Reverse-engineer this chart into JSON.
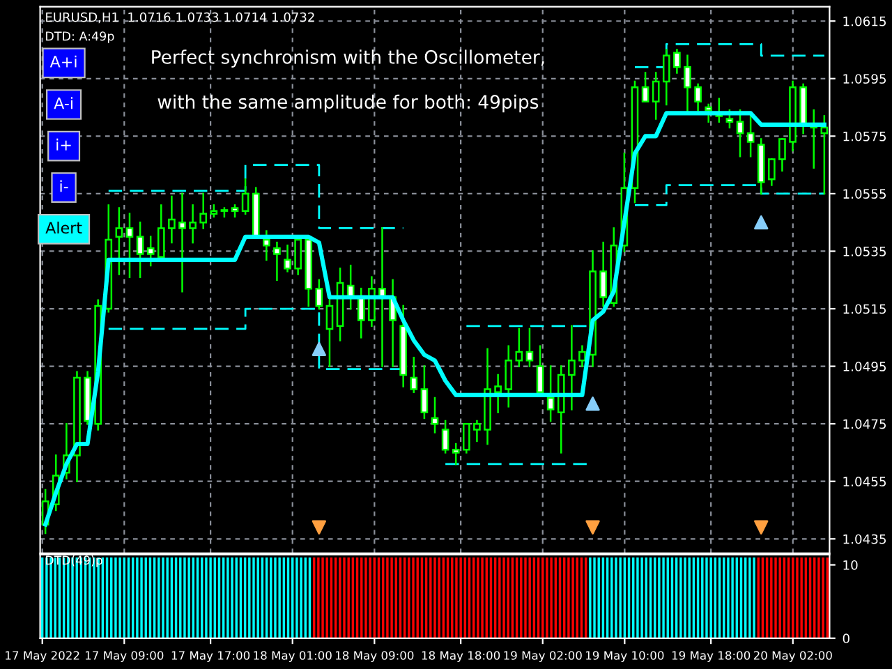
{
  "chart_data": [
    {
      "type": "candlestick",
      "title": "EURUSD,H1  1.0716 1.0733 1.0714 1.0732",
      "subtitle": "DTD: A:49p",
      "annotations": [
        "Perfect synchronism with the Oscillometer,",
        "with the same amplitude for both: 49pips",
        "A+i",
        "A-i",
        "i+",
        "i-",
        "Alert"
      ],
      "categories": [
        null,
        null,
        null,
        null,
        null,
        null,
        null,
        null,
        null,
        null,
        null,
        null,
        null,
        null,
        null,
        null,
        null,
        null,
        null,
        null,
        null,
        null,
        null,
        null,
        null,
        null,
        null,
        null,
        null,
        null,
        null,
        null,
        null,
        null,
        null,
        null,
        null,
        null,
        null,
        null,
        null,
        null,
        null,
        null,
        null,
        null,
        null,
        null,
        null,
        null,
        null,
        null,
        null,
        null,
        null,
        null,
        null,
        null,
        null,
        null,
        null,
        null,
        null,
        null,
        null,
        null,
        null,
        null,
        null,
        null,
        null,
        null,
        null,
        null,
        null
      ],
      "ohlc": [
        [
          1.044,
          1.0452,
          1.0437,
          1.0448
        ],
        [
          1.0447,
          1.0464,
          1.0445,
          1.0457
        ],
        [
          1.0458,
          1.0475,
          1.0456,
          1.0464
        ],
        [
          1.0464,
          1.0493,
          1.0455,
          1.0491
        ],
        [
          1.0491,
          1.0493,
          1.0475,
          1.0476
        ],
        [
          1.0475,
          1.0518,
          1.0473,
          1.0516
        ],
        [
          1.0515,
          1.0551,
          1.0514,
          1.0539
        ],
        [
          1.054,
          1.055,
          1.0527,
          1.0543
        ],
        [
          1.0543,
          1.0548,
          1.0526,
          1.054
        ],
        [
          1.054,
          1.0545,
          1.0526,
          1.0534
        ],
        [
          1.0536,
          1.054,
          1.053,
          1.0534
        ],
        [
          1.0533,
          1.0551,
          1.0532,
          1.0543
        ],
        [
          1.0543,
          1.0554,
          1.0538,
          1.0546
        ],
        [
          1.0545,
          1.0555,
          1.0521,
          1.0543
        ],
        [
          1.0543,
          1.0551,
          1.0538,
          1.0545
        ],
        [
          1.0545,
          1.0555,
          1.0543,
          1.0548
        ],
        [
          1.0548,
          1.0551,
          1.0547,
          1.0549
        ],
        [
          1.0549,
          1.055,
          1.0547,
          1.0549
        ],
        [
          1.055,
          1.0551,
          1.0547,
          1.0549
        ],
        [
          1.0549,
          1.056,
          1.0548,
          1.0555
        ],
        [
          1.0555,
          1.0557,
          1.054,
          1.054
        ],
        [
          1.0539,
          1.0542,
          1.0532,
          1.0537
        ],
        [
          1.0536,
          1.0538,
          1.0525,
          1.0534
        ],
        [
          1.0532,
          1.0537,
          1.0528,
          1.0529
        ],
        [
          1.0529,
          1.054,
          1.0527,
          1.0539
        ],
        [
          1.0539,
          1.054,
          1.0516,
          1.0522
        ],
        [
          1.0522,
          1.0525,
          1.0515,
          1.0516
        ],
        [
          1.0508,
          1.0519,
          1.0495,
          1.0516
        ],
        [
          1.0509,
          1.0529,
          1.0504,
          1.0524
        ],
        [
          1.0523,
          1.053,
          1.0515,
          1.0519
        ],
        [
          1.0519,
          1.0522,
          1.0505,
          1.0511
        ],
        [
          1.0511,
          1.0526,
          1.0509,
          1.0522
        ],
        [
          1.0522,
          1.0543,
          1.0495,
          1.0519
        ],
        [
          1.0519,
          1.0525,
          1.0495,
          1.0511
        ],
        [
          1.0509,
          1.0516,
          1.0488,
          1.0492
        ],
        [
          1.0491,
          1.0498,
          1.0486,
          1.0487
        ],
        [
          1.0487,
          1.0495,
          1.0477,
          1.0479
        ],
        [
          1.0477,
          1.0484,
          1.0472,
          1.0475
        ],
        [
          1.0473,
          1.0476,
          1.0465,
          1.0466
        ],
        [
          1.0466,
          1.0468,
          1.0461,
          1.0465
        ],
        [
          1.0466,
          1.0475,
          1.0465,
          1.0475
        ],
        [
          1.0473,
          1.0476,
          1.0469,
          1.0475
        ],
        [
          1.0473,
          1.0501,
          1.0468,
          1.0487
        ],
        [
          1.0486,
          1.0492,
          1.0479,
          1.0488
        ],
        [
          1.0487,
          1.0502,
          1.0481,
          1.0497
        ],
        [
          1.0497,
          1.0508,
          1.0495,
          1.05
        ],
        [
          1.05,
          1.0508,
          1.0495,
          1.0497
        ],
        [
          1.0495,
          1.0502,
          1.0485,
          1.0486
        ],
        [
          1.0484,
          1.0495,
          1.0476,
          1.048
        ],
        [
          1.0479,
          1.0495,
          1.0465,
          1.0492
        ],
        [
          1.0492,
          1.0509,
          1.048,
          1.0497
        ],
        [
          1.0497,
          1.0502,
          1.0495,
          1.05
        ],
        [
          1.0499,
          1.0535,
          1.0495,
          1.0528
        ],
        [
          1.0528,
          1.0538,
          1.0516,
          1.0519
        ],
        [
          1.0517,
          1.0543,
          1.0516,
          1.0537
        ],
        [
          1.0537,
          1.0569,
          1.0535,
          1.0557
        ],
        [
          1.0557,
          1.0594,
          1.0552,
          1.0592
        ],
        [
          1.0592,
          1.0597,
          1.0587,
          1.0587
        ],
        [
          1.0587,
          1.0597,
          1.0581,
          1.0594
        ],
        [
          1.0594,
          1.0605,
          1.0586,
          1.0603
        ],
        [
          1.0604,
          1.0605,
          1.0597,
          1.0599
        ],
        [
          1.0599,
          1.0603,
          1.0583,
          1.0592
        ],
        [
          1.0592,
          1.0593,
          1.0584,
          1.0587
        ],
        [
          1.0585,
          1.0586,
          1.058,
          1.0584
        ],
        [
          1.0583,
          1.0588,
          1.058,
          1.0582
        ],
        [
          1.0581,
          1.0584,
          1.0578,
          1.058
        ],
        [
          1.058,
          1.0584,
          1.0568,
          1.0576
        ],
        [
          1.0576,
          1.0582,
          1.0568,
          1.0573
        ],
        [
          1.0572,
          1.0574,
          1.0555,
          1.0559
        ],
        [
          1.056,
          1.0567,
          1.0558,
          1.0567
        ],
        [
          1.0567,
          1.0574,
          1.0563,
          1.0574
        ],
        [
          1.0573,
          1.0594,
          1.057,
          1.0592
        ],
        [
          1.0592,
          1.0593,
          1.0576,
          1.0579
        ],
        [
          1.0579,
          1.0584,
          1.0564,
          1.0578
        ],
        [
          1.0576,
          1.0582,
          1.0555,
          1.0578
        ]
      ],
      "series": [
        {
          "type": "line",
          "color": "#00ffff",
          "line_style": "solid",
          "values": [
            1.044,
            1.0451,
            1.0461,
            1.0468,
            1.0468,
            1.0493,
            1.0532,
            1.0532,
            1.0532,
            1.0532,
            1.0532,
            1.0532,
            1.0532,
            1.0532,
            1.0532,
            1.0532,
            1.0532,
            1.0532,
            1.0532,
            1.054,
            1.054,
            1.054,
            1.054,
            1.054,
            1.054,
            1.054,
            1.0538,
            1.0519,
            1.0519,
            1.0519,
            1.0519,
            1.0519,
            1.0519,
            1.0519,
            1.0511,
            1.0504,
            1.0499,
            1.0497,
            1.049,
            1.0485,
            1.0485,
            1.0485,
            1.0485,
            1.0485,
            1.0485,
            1.0485,
            1.0485,
            1.0485,
            1.0485,
            1.0485,
            1.0485,
            1.0485,
            1.0511,
            1.0514,
            1.0521,
            1.0545,
            1.0569,
            1.0575,
            1.0575,
            1.0583,
            1.0583,
            1.0583,
            1.0583,
            1.0583,
            1.0583,
            1.0583,
            1.0583,
            1.0583,
            1.0579,
            1.0579,
            1.0579,
            1.0579,
            1.0579,
            1.0579,
            1.0579
          ]
        },
        {
          "type": "step",
          "color": "#00ffff",
          "line_style": "dashed",
          "values": [
            null,
            null,
            null,
            null,
            null,
            null,
            1.0556,
            1.0556,
            1.0556,
            1.0556,
            1.0556,
            1.0556,
            1.0556,
            1.0556,
            1.0556,
            1.0556,
            1.0556,
            1.0556,
            1.0556,
            1.0565,
            1.0565,
            1.0565,
            1.0565,
            1.0565,
            1.0565,
            1.0565,
            1.0543,
            1.0543,
            1.0543,
            1.0543,
            1.0543,
            1.0543,
            1.0543,
            1.0543,
            null,
            null,
            null,
            null,
            null,
            null,
            1.0509,
            1.0509,
            1.0509,
            1.0509,
            1.0509,
            1.0509,
            1.0509,
            1.0509,
            1.0509,
            1.0509,
            1.0509,
            1.0509,
            null,
            null,
            null,
            null,
            1.0599,
            1.0599,
            1.0599,
            1.0607,
            1.0607,
            1.0607,
            1.0607,
            1.0607,
            1.0607,
            1.0607,
            1.0607,
            1.0607,
            1.0603,
            1.0603,
            1.0603,
            1.0603,
            1.0603,
            1.0603,
            1.0603
          ]
        },
        {
          "type": "step",
          "color": "#00ffff",
          "line_style": "dashed",
          "values": [
            null,
            null,
            null,
            null,
            null,
            null,
            1.0508,
            1.0508,
            1.0508,
            1.0508,
            1.0508,
            1.0508,
            1.0508,
            1.0508,
            1.0508,
            1.0508,
            1.0508,
            1.0508,
            1.0508,
            1.0515,
            1.0515,
            1.0515,
            1.0515,
            1.0515,
            1.0515,
            1.0515,
            1.0494,
            1.0494,
            1.0494,
            1.0494,
            1.0494,
            1.0494,
            1.0494,
            1.0494,
            null,
            null,
            null,
            null,
            1.0461,
            1.0461,
            1.0461,
            1.0461,
            1.0461,
            1.0461,
            1.0461,
            1.0461,
            1.0461,
            1.0461,
            1.0461,
            1.0461,
            1.0461,
            1.0461,
            null,
            null,
            null,
            null,
            1.0551,
            1.0551,
            1.0551,
            1.0558,
            1.0558,
            1.0558,
            1.0558,
            1.0558,
            1.0558,
            1.0558,
            1.0558,
            1.0558,
            1.0555,
            1.0555,
            1.0555,
            1.0555,
            1.0555,
            1.0555,
            1.0555
          ]
        },
        {
          "type": "scatter",
          "color": "#87cefa",
          "marker": "triangle",
          "values": [
            null,
            null,
            null,
            null,
            null,
            null,
            null,
            null,
            null,
            null,
            null,
            null,
            null,
            null,
            null,
            null,
            null,
            null,
            null,
            null,
            null,
            null,
            null,
            null,
            null,
            null,
            1.0501,
            null,
            null,
            null,
            null,
            null,
            null,
            null,
            null,
            null,
            null,
            null,
            null,
            null,
            null,
            null,
            null,
            null,
            null,
            null,
            null,
            null,
            null,
            null,
            null,
            null,
            1.0482,
            null,
            null,
            null,
            null,
            null,
            null,
            null,
            null,
            null,
            null,
            null,
            null,
            null,
            null,
            null,
            1.0545,
            null,
            null,
            null,
            null,
            null,
            null
          ]
        },
        {
          "type": "scatter",
          "color": "#ffa040",
          "marker": "triangle_down",
          "values": [
            null,
            null,
            null,
            null,
            null,
            null,
            null,
            null,
            null,
            null,
            null,
            null,
            null,
            null,
            null,
            null,
            null,
            null,
            null,
            null,
            null,
            null,
            null,
            null,
            null,
            null,
            1.0439,
            null,
            null,
            null,
            null,
            null,
            null,
            null,
            null,
            null,
            null,
            null,
            null,
            null,
            null,
            null,
            null,
            null,
            null,
            null,
            null,
            null,
            null,
            null,
            null,
            null,
            1.0439,
            null,
            null,
            null,
            null,
            null,
            null,
            null,
            null,
            null,
            null,
            null,
            null,
            null,
            null,
            null,
            1.0439,
            null,
            null,
            null,
            null,
            null,
            null
          ]
        }
      ],
      "ylim": [
        1.043,
        1.062
      ],
      "yticks": [
        1.0435,
        1.0455,
        1.0475,
        1.0495,
        1.0515,
        1.0535,
        1.0555,
        1.0575,
        1.0595,
        1.0615
      ],
      "grid": true,
      "tick_labels": "y"
    },
    {
      "type": "bar",
      "title": "DTD(49)p",
      "categories": [
        "17 May 2022",
        null,
        null,
        null,
        null,
        null,
        null,
        null,
        null,
        null,
        null,
        null,
        null,
        null,
        null,
        null,
        null,
        null,
        null,
        "17 May 09:00",
        null,
        null,
        null,
        null,
        null,
        null,
        null,
        null,
        null,
        null,
        null,
        null,
        null,
        null,
        null,
        null,
        null,
        null,
        null,
        "17 May 17:00",
        null,
        null,
        null,
        null,
        null,
        null,
        null,
        null,
        null,
        null,
        null,
        null,
        null,
        null,
        null,
        null,
        null,
        null,
        "18 May 01:00",
        null,
        null,
        null,
        null,
        null,
        null,
        null,
        null,
        null,
        null,
        null,
        null,
        null,
        null,
        null,
        null,
        null,
        null,
        "18 May 09:00",
        null,
        null,
        null,
        null,
        null,
        null,
        null,
        null,
        null,
        null,
        null,
        null,
        null,
        null,
        null,
        null,
        null,
        null,
        null,
        "18 May 18:00",
        null,
        null,
        null,
        null,
        null,
        null,
        null,
        null,
        null,
        null,
        null,
        null,
        null,
        null,
        null,
        null,
        null,
        null,
        "19 May 02:00",
        null,
        null,
        null,
        null,
        null,
        null,
        null,
        null,
        null,
        null,
        null,
        null,
        null,
        null,
        null,
        null,
        null,
        null,
        "19 May 10:00",
        null,
        null,
        null,
        null,
        null,
        null,
        null,
        null,
        null,
        null,
        null,
        null,
        null,
        null,
        null,
        null,
        null,
        null,
        null,
        "19 May 18:00",
        null,
        null,
        null,
        null,
        null,
        null,
        null,
        null,
        null,
        null,
        null,
        null,
        null,
        null,
        null,
        null,
        null,
        null,
        "20 May 02:00",
        null,
        null,
        null,
        null,
        null,
        null,
        null,
        null
      ],
      "values": [
        11,
        11,
        11,
        11,
        11,
        11,
        11,
        11,
        11,
        11,
        11,
        11,
        11,
        11,
        11,
        11,
        11,
        11,
        11,
        11,
        11,
        11,
        11,
        11,
        11,
        11,
        11,
        11,
        11,
        11,
        11,
        11,
        11,
        11,
        11,
        11,
        11,
        11,
        11,
        11,
        11,
        11,
        11,
        11,
        11,
        11,
        11,
        11,
        11,
        11,
        11,
        11,
        11,
        11,
        11,
        11,
        11,
        11,
        11,
        11,
        11,
        11,
        11,
        11,
        11,
        11,
        11,
        11,
        11,
        11,
        11,
        11,
        11,
        11,
        11,
        11,
        11,
        11,
        11,
        11,
        11,
        11,
        11,
        11,
        11,
        11,
        11,
        11,
        11,
        11,
        11,
        11,
        11,
        11,
        11,
        11,
        11,
        11,
        11,
        11,
        11,
        11,
        11,
        11,
        11,
        11,
        11,
        11,
        11,
        11,
        11,
        11,
        11,
        11,
        11,
        11,
        11,
        11,
        11,
        11,
        11,
        11,
        11,
        11,
        11,
        11,
        11,
        11,
        11,
        11,
        11,
        11,
        11,
        11,
        11,
        11,
        11,
        11,
        11,
        11,
        11,
        11,
        11,
        11,
        11,
        11,
        11,
        11,
        11,
        11,
        11,
        11,
        11,
        11,
        11,
        11,
        11,
        11,
        11,
        11,
        11,
        11,
        11,
        11,
        11,
        11,
        11,
        11,
        11,
        11,
        11,
        11,
        11,
        11,
        11,
        11,
        11,
        11,
        11,
        11,
        11,
        11,
        11
      ],
      "colors": [
        "#00ffff",
        "#00ffff",
        "#00ffff",
        "#00ffff",
        "#00ffff",
        "#00ffff",
        "#00ffff",
        "#00ffff",
        "#00ffff",
        "#00ffff",
        "#00ffff",
        "#00ffff",
        "#00ffff",
        "#00ffff",
        "#00ffff",
        "#00ffff",
        "#00ffff",
        "#00ffff",
        "#00ffff",
        "#00ffff",
        "#00ffff",
        "#00ffff",
        "#00ffff",
        "#00ffff",
        "#00ffff",
        "#00ffff",
        "#00ffff",
        "#00ffff",
        "#00ffff",
        "#00ffff",
        "#00ffff",
        "#00ffff",
        "#00ffff",
        "#00ffff",
        "#00ffff",
        "#00ffff",
        "#00ffff",
        "#00ffff",
        "#00ffff",
        "#00ffff",
        "#00ffff",
        "#00ffff",
        "#00ffff",
        "#00ffff",
        "#00ffff",
        "#00ffff",
        "#00ffff",
        "#00ffff",
        "#00ffff",
        "#00ffff",
        "#00ffff",
        "#00ffff",
        "#00ffff",
        "#00ffff",
        "#00ffff",
        "#00ffff",
        "#00ffff",
        "#00ffff",
        "#00ffff",
        "#00ffff",
        "#00ffff",
        "#00ffff",
        "#00ffff",
        "#ff0000",
        "#ff0000",
        "#ff0000",
        "#ff0000",
        "#ff0000",
        "#ff0000",
        "#ff0000",
        "#ff0000",
        "#ff0000",
        "#ff0000",
        "#ff0000",
        "#ff0000",
        "#ff0000",
        "#ff0000",
        "#ff0000",
        "#ff0000",
        "#ff0000",
        "#ff0000",
        "#ff0000",
        "#ff0000",
        "#ff0000",
        "#ff0000",
        "#ff0000",
        "#ff0000",
        "#ff0000",
        "#ff0000",
        "#ff0000",
        "#ff0000",
        "#ff0000",
        "#ff0000",
        "#ff0000",
        "#ff0000",
        "#ff0000",
        "#ff0000",
        "#ff0000",
        "#ff0000",
        "#ff0000",
        "#ff0000",
        "#ff0000",
        "#ff0000",
        "#ff0000",
        "#ff0000",
        "#ff0000",
        "#ff0000",
        "#ff0000",
        "#ff0000",
        "#ff0000",
        "#ff0000",
        "#ff0000",
        "#ff0000",
        "#ff0000",
        "#ff0000",
        "#ff0000",
        "#ff0000",
        "#ff0000",
        "#ff0000",
        "#ff0000",
        "#ff0000",
        "#ff0000",
        "#ff0000",
        "#ff0000",
        "#ff0000",
        "#ff0000",
        "#ff0000",
        "#00ffff",
        "#00ffff",
        "#00ffff",
        "#00ffff",
        "#00ffff",
        "#00ffff",
        "#00ffff",
        "#00ffff",
        "#00ffff",
        "#00ffff",
        "#00ffff",
        "#00ffff",
        "#00ffff",
        "#00ffff",
        "#00ffff",
        "#00ffff",
        "#00ffff",
        "#00ffff",
        "#00ffff",
        "#00ffff",
        "#00ffff",
        "#00ffff",
        "#00ffff",
        "#00ffff",
        "#00ffff",
        "#00ffff",
        "#00ffff",
        "#00ffff",
        "#00ffff",
        "#00ffff",
        "#00ffff",
        "#00ffff",
        "#00ffff",
        "#00ffff",
        "#00ffff",
        "#00ffff",
        "#00ffff",
        "#00ffff",
        "#00ffff",
        "#ff0000",
        "#ff0000",
        "#ff0000",
        "#ff0000",
        "#ff0000",
        "#ff0000",
        "#ff0000",
        "#ff0000",
        "#ff0000",
        "#ff0000",
        "#ff0000",
        "#ff0000",
        "#ff0000",
        "#ff0000",
        "#ff0000",
        "#ff0000",
        "#ff0000"
      ],
      "ylim": [
        0,
        11.4
      ],
      "yticks": [
        0,
        10
      ]
    }
  ]
}
